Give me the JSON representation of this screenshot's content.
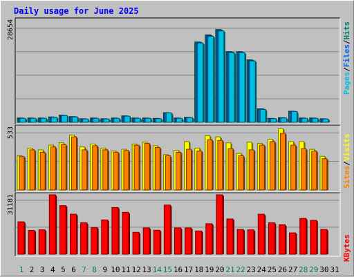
{
  "title": "Daily usage for June 2025",
  "colors": {
    "pages": "#00c0e0",
    "files": "#0060ff",
    "hits": "#008070",
    "visits": "#ffff00",
    "sites": "#ff8000",
    "kbytes": "#ff0000",
    "day_normal": "#000000",
    "day_weekend": "#00805c",
    "background": "#c0c0c0",
    "panel": "#c0c0c0"
  },
  "right_labels": {
    "pages": "Pages",
    "files": "Files",
    "hits": "Hits",
    "sep": "/",
    "sites": "Sites",
    "visits": "Visits",
    "kbytes": "KBytes"
  },
  "axis_max_labels": {
    "hits": "28654",
    "visits": "533",
    "kbytes": "31181"
  },
  "x_labels": [
    "1",
    "2",
    "3",
    "4",
    "5",
    "6",
    "7",
    "8",
    "9",
    "10",
    "11",
    "12",
    "13",
    "14",
    "15",
    "16",
    "17",
    "18",
    "19",
    "20",
    "21",
    "22",
    "23",
    "24",
    "25",
    "26",
    "27",
    "28",
    "29",
    "30",
    "31"
  ],
  "weekend_days": [
    1,
    7,
    8,
    14,
    15,
    21,
    22,
    28,
    29
  ],
  "chart_data": [
    {
      "type": "bar",
      "name": "hits-files-pages",
      "categories": [
        "1",
        "2",
        "3",
        "4",
        "5",
        "6",
        "7",
        "8",
        "9",
        "10",
        "11",
        "12",
        "13",
        "14",
        "15",
        "16",
        "17",
        "18",
        "19",
        "20",
        "21",
        "22",
        "23",
        "24",
        "25",
        "26",
        "27",
        "28",
        "29",
        "30",
        "31"
      ],
      "ylim": [
        0,
        28654
      ],
      "series": [
        {
          "name": "Hits",
          "values": [
            1200,
            1200,
            1200,
            1500,
            2000,
            1600,
            1000,
            1200,
            1000,
            1200,
            1800,
            1200,
            1200,
            1100,
            2700,
            1200,
            1400,
            22500,
            24500,
            26000,
            19800,
            19800,
            17500,
            3800,
            1100,
            1300,
            3100,
            1200,
            1200,
            1000,
            0
          ]
        },
        {
          "name": "Files",
          "values": [
            1150,
            1150,
            1150,
            1450,
            1950,
            1550,
            950,
            1150,
            950,
            1150,
            1750,
            1150,
            1150,
            1050,
            2650,
            1150,
            1350,
            22400,
            24300,
            25800,
            19700,
            19600,
            17300,
            3700,
            1050,
            1250,
            3050,
            1150,
            1150,
            950,
            0
          ]
        },
        {
          "name": "Pages",
          "values": [
            1100,
            1100,
            1100,
            1400,
            1900,
            1500,
            900,
            1100,
            900,
            1100,
            1700,
            1100,
            1100,
            1000,
            2600,
            1100,
            1300,
            22200,
            24100,
            25600,
            19500,
            19500,
            17200,
            3600,
            1000,
            1200,
            3000,
            1100,
            1100,
            900,
            0
          ]
        }
      ]
    },
    {
      "type": "bar",
      "name": "visits-sites",
      "categories": [
        "1",
        "2",
        "3",
        "4",
        "5",
        "6",
        "7",
        "8",
        "9",
        "10",
        "11",
        "12",
        "13",
        "14",
        "15",
        "16",
        "17",
        "18",
        "19",
        "20",
        "21",
        "22",
        "23",
        "24",
        "25",
        "26",
        "27",
        "28",
        "29",
        "30",
        "31"
      ],
      "ylim": [
        0,
        533
      ],
      "series": [
        {
          "name": "Visits",
          "values": [
            290,
            355,
            340,
            380,
            400,
            465,
            365,
            390,
            355,
            330,
            345,
            390,
            405,
            375,
            300,
            335,
            410,
            355,
            460,
            450,
            400,
            310,
            405,
            395,
            430,
            520,
            410,
            410,
            345,
            285,
            0
          ]
        },
        {
          "name": "Sites",
          "values": [
            283,
            340,
            320,
            365,
            385,
            450,
            340,
            375,
            340,
            320,
            335,
            380,
            395,
            360,
            290,
            320,
            345,
            330,
            425,
            420,
            350,
            290,
            340,
            380,
            410,
            480,
            380,
            350,
            330,
            265,
            0
          ]
        }
      ]
    },
    {
      "type": "bar",
      "name": "kbytes",
      "categories": [
        "1",
        "2",
        "3",
        "4",
        "5",
        "6",
        "7",
        "8",
        "9",
        "10",
        "11",
        "12",
        "13",
        "14",
        "15",
        "16",
        "17",
        "18",
        "19",
        "20",
        "21",
        "22",
        "23",
        "24",
        "25",
        "26",
        "27",
        "28",
        "29",
        "30",
        "31"
      ],
      "ylim": [
        0,
        31181
      ],
      "series": [
        {
          "name": "KBytes",
          "values": [
            17000,
            12500,
            12800,
            31181,
            25500,
            21000,
            16500,
            14000,
            18000,
            24500,
            22000,
            11500,
            13800,
            12600,
            25800,
            13800,
            13800,
            12200,
            16000,
            31181,
            18500,
            13000,
            12800,
            21000,
            16500,
            15500,
            11200,
            18800,
            17800,
            13000,
            0
          ]
        }
      ]
    }
  ]
}
